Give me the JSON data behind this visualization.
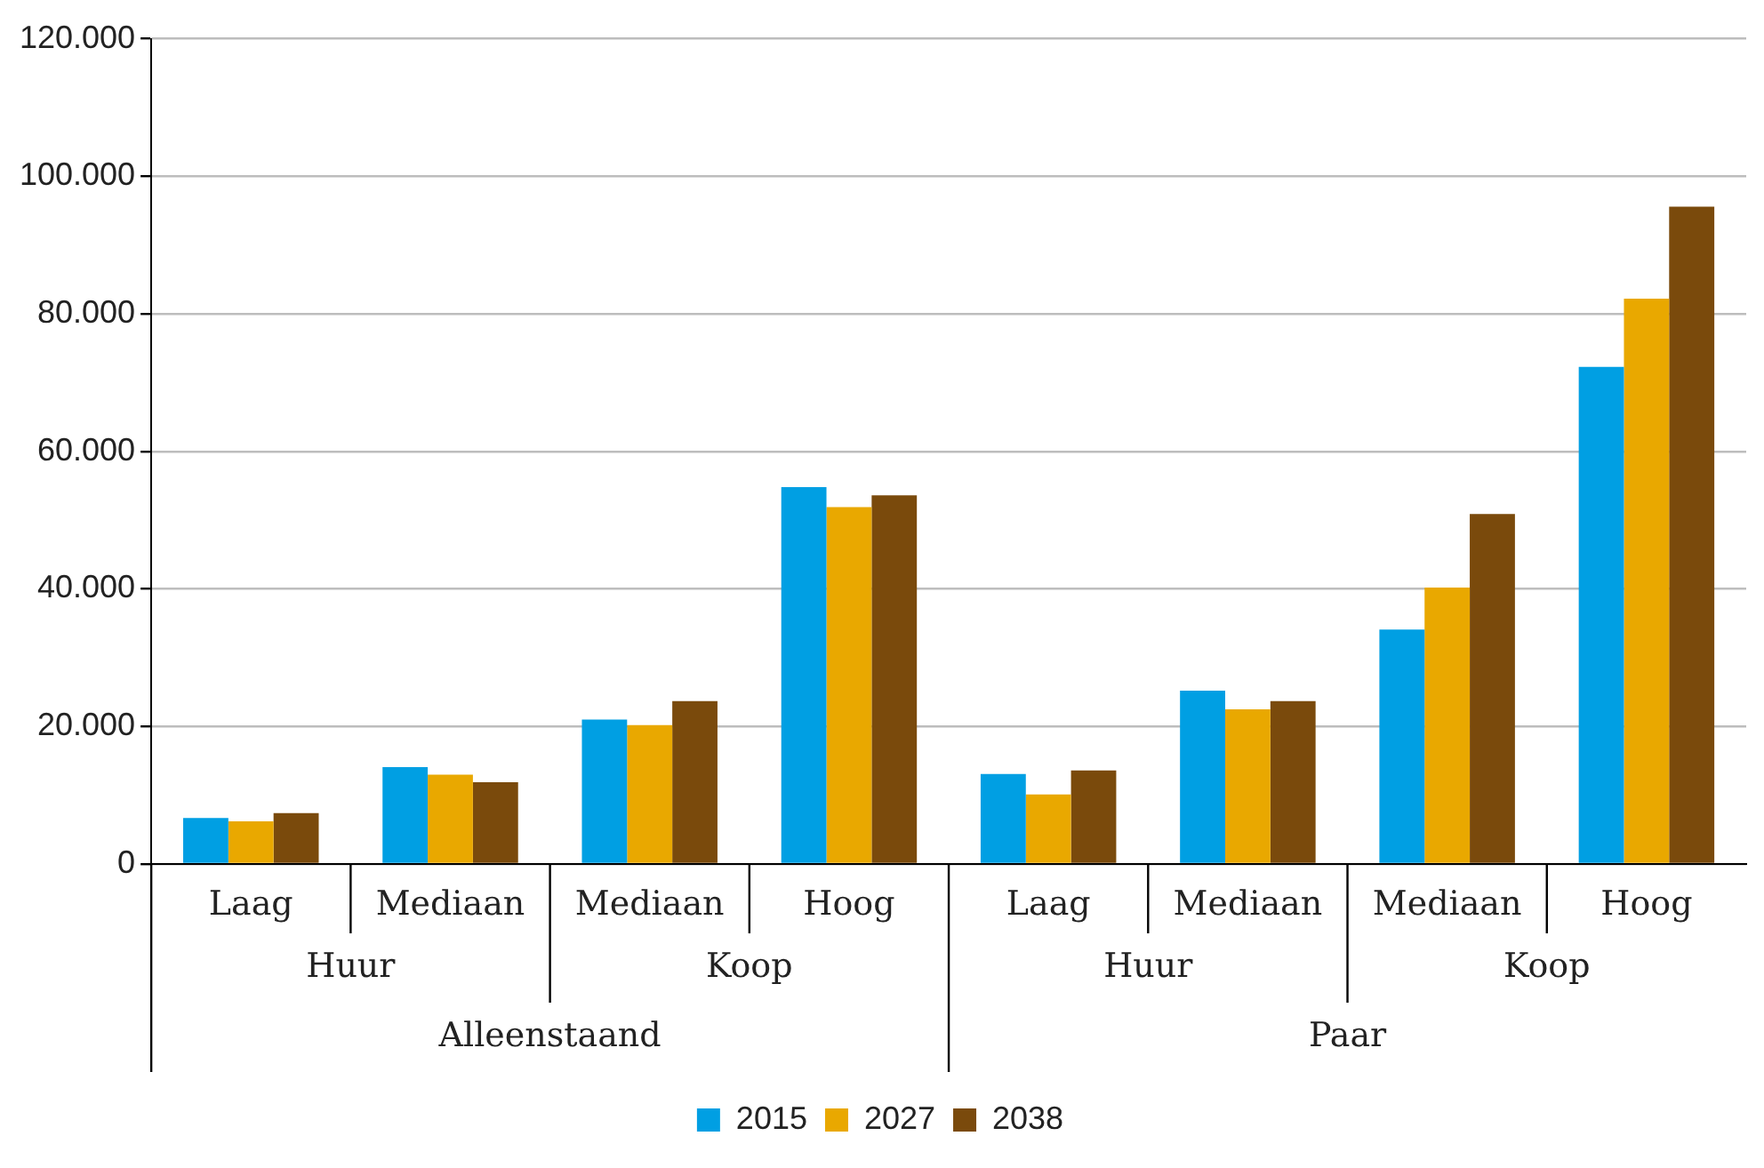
{
  "chart_data": {
    "type": "bar",
    "categories": [
      "Laag",
      "Mediaan",
      "Mediaan",
      "Hoog",
      "Laag",
      "Mediaan",
      "Mediaan",
      "Hoog"
    ],
    "annotations": [
      "Huur",
      "Koop",
      "Huur",
      "Koop",
      "Alleenstaand",
      "Paar"
    ],
    "series": [
      {
        "name": "2015",
        "color": "#009fe3",
        "values": [
          6700,
          14100,
          21000,
          54800,
          13100,
          25200,
          34100,
          72300
        ]
      },
      {
        "name": "2027",
        "color": "#e9a800",
        "values": [
          6200,
          13000,
          20200,
          51900,
          10100,
          22500,
          40200,
          82200
        ]
      },
      {
        "name": "2038",
        "color": "#7a4a0c",
        "values": [
          7400,
          11900,
          23700,
          53600,
          13600,
          23700,
          50900,
          95600
        ]
      }
    ],
    "ylim": [
      0,
      120000
    ],
    "yticks": [
      {
        "value": 0,
        "label": "0"
      },
      {
        "value": 20000,
        "label": "20.000"
      },
      {
        "value": 40000,
        "label": "40.000"
      },
      {
        "value": 60000,
        "label": "60.000"
      },
      {
        "value": 80000,
        "label": "80.000"
      },
      {
        "value": 100000,
        "label": "100.000"
      },
      {
        "value": 120000,
        "label": "120.000"
      }
    ],
    "grid": "y",
    "legend": "bottom"
  }
}
